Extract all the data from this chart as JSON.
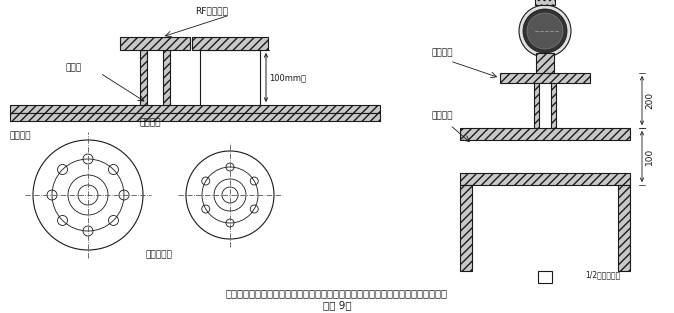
{
  "line_color": "#1a1a1a",
  "text_color": "#1a1a1a",
  "title_text": "插入式流量计短管制作、安装示意图，根据流量计算采用不同的法兰及短管公称直径",
  "subtitle_text": "（图 9）",
  "RF_label": "RF配套法兰",
  "weld_point_label": "焊接点",
  "pipe_label": "工艺管道",
  "short_pipe_label": "焊接短管",
  "center_line_label": "管道中心线",
  "height_label": "100mm高",
  "fitting_short_pipe": "配套短管",
  "outer_wall_label": "管道外壁",
  "dim_200": "200",
  "dim_100": "100",
  "half_label": "1/2配套管外径",
  "hatch_gray": "#c8c8c8",
  "white": "#ffffff"
}
